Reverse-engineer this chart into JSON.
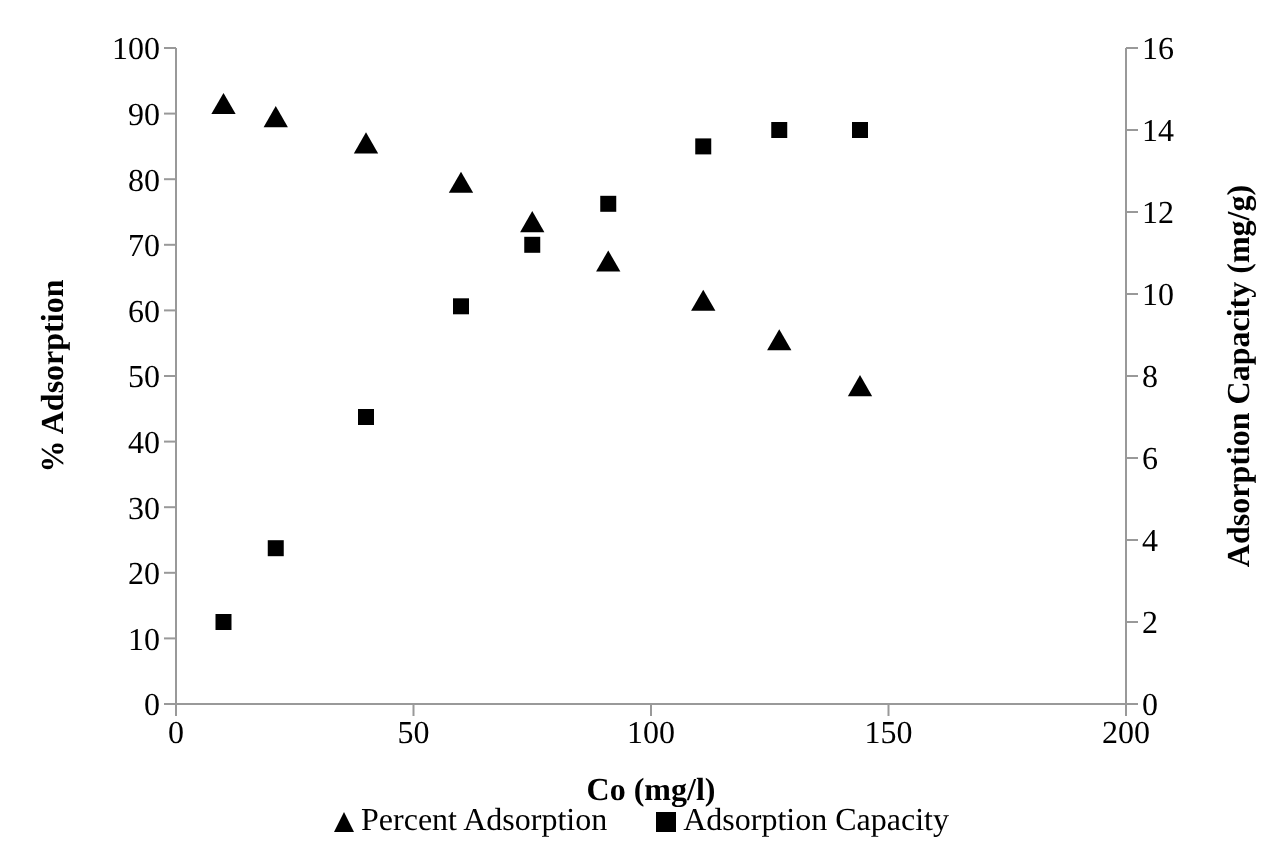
{
  "chart_data": {
    "type": "scatter",
    "xlabel": "Co (mg/l)",
    "ylabel": "% Adsorption",
    "y2label": "Adsorption  Capacity  (mg/g)",
    "x": [
      10,
      21,
      40,
      60,
      75,
      91,
      111,
      127,
      144
    ],
    "series": [
      {
        "name": "Percent Adsorption",
        "color": "#000000",
        "marker": "triangle",
        "values": [
          91,
          89,
          85,
          79,
          73,
          67,
          61,
          55,
          48
        ]
      },
      {
        "name": "Adsorption Capacity",
        "color": "#000000",
        "marker": "square",
        "axis": "y2",
        "values": [
          2,
          3.8,
          7,
          9.7,
          11.2,
          12.2,
          13.6,
          14,
          14
        ]
      }
    ],
    "xlim": [
      0,
      200
    ],
    "xticks": [
      0,
      50,
      100,
      150,
      200
    ],
    "ylim": [
      0,
      100
    ],
    "yticks": [
      0,
      10,
      20,
      30,
      40,
      50,
      60,
      70,
      80,
      90,
      100
    ],
    "y2lim": [
      0,
      16
    ],
    "y2ticks": [
      0,
      2,
      4,
      6,
      8,
      10,
      12,
      14,
      16
    ],
    "legend": "bottom"
  }
}
